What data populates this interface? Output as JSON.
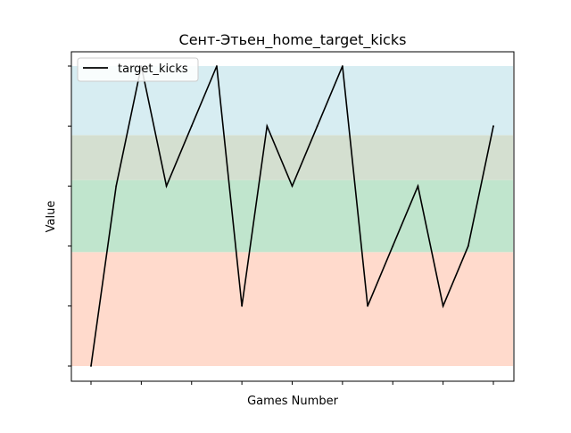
{
  "chart_data": {
    "type": "line",
    "title": "Сент-Этьен_home_target_kicks",
    "xlabel": "Games Number",
    "ylabel": "Value",
    "legend": {
      "placement": "top-left"
    },
    "grid": false,
    "x_tick_labels_visible": false,
    "y_tick_labels_visible": false,
    "x": [
      0,
      1,
      2,
      3,
      4,
      5,
      6,
      7,
      8,
      9,
      10,
      11,
      12,
      13,
      14,
      15,
      16
    ],
    "ylim": [
      0,
      5
    ],
    "series": [
      {
        "name": "target_kicks",
        "color": "#000000",
        "values": [
          0,
          3,
          5,
          3,
          4,
          5,
          1,
          4,
          3,
          4,
          5,
          1,
          2,
          3,
          1,
          2,
          4
        ]
      }
    ],
    "bands": [
      {
        "from": 0,
        "to": 1.9,
        "color": "#ffdacc"
      },
      {
        "from": 1.9,
        "to": 3.1,
        "color": "#c0e5cd"
      },
      {
        "from": 3.1,
        "to": 3.85,
        "color": "#d4dfd0"
      },
      {
        "from": 3.85,
        "to": 5,
        "color": "#d7edf2"
      }
    ]
  }
}
